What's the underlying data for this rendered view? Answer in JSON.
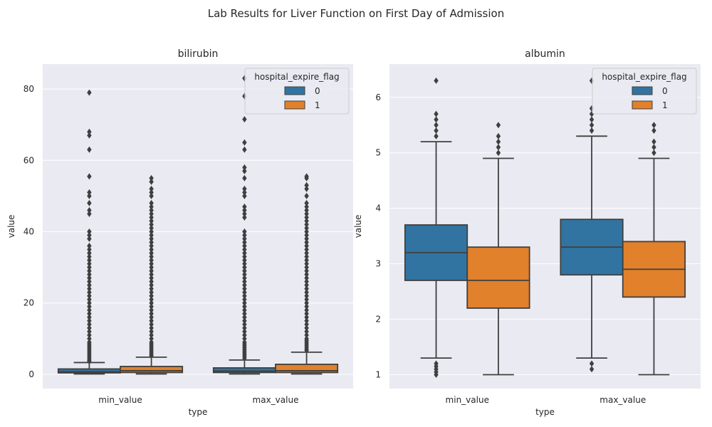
{
  "figure": {
    "suptitle": "Lab Results for Liver Function on First Day of Admission"
  },
  "chart_data": [
    {
      "type": "box",
      "title": "bilirubin",
      "xlabel": "type",
      "ylabel": "value",
      "categories": [
        "min_value",
        "max_value"
      ],
      "ylim": [
        -4,
        87
      ],
      "yticks": [
        0,
        20,
        40,
        60,
        80
      ],
      "legend": {
        "title": "hospital_expire_flag",
        "position": "top-right",
        "entries": [
          "0",
          "1"
        ]
      },
      "series": [
        {
          "name": "0",
          "color": "#3274a1",
          "boxes": [
            {
              "whisker_low": 0.1,
              "q1": 0.4,
              "median": 0.7,
              "q3": 1.5,
              "whisker_high": 3.3,
              "outliers": [
                79,
                68,
                67,
                63,
                55.5,
                51,
                50,
                48,
                46,
                45,
                40,
                39,
                38,
                36,
                35,
                34,
                33,
                32,
                31,
                30,
                29,
                28,
                27,
                26,
                25,
                24,
                23,
                22,
                21,
                20,
                19,
                18,
                17,
                16,
                15,
                14,
                13,
                12,
                11,
                10,
                9,
                8.5,
                8,
                7.5,
                7,
                6.5,
                6,
                5.5,
                5,
                4.5,
                4,
                3.6
              ]
            },
            {
              "whisker_low": 0.1,
              "q1": 0.5,
              "median": 0.9,
              "q3": 1.8,
              "whisker_high": 4.0,
              "outliers": [
                83,
                78,
                71.5,
                65,
                63,
                58,
                57,
                55,
                52,
                51,
                50,
                47,
                46,
                45,
                44,
                40,
                39,
                38,
                37,
                36,
                35,
                34,
                33,
                32,
                31,
                30,
                29,
                28,
                27,
                26,
                25,
                24,
                23,
                22,
                21,
                20,
                19,
                18,
                17,
                16,
                15,
                14,
                13,
                12,
                11,
                10,
                9,
                8.5,
                8,
                7.5,
                7,
                6.5,
                6,
                5.5,
                5,
                4.5
              ]
            }
          ]
        },
        {
          "name": "1",
          "color": "#e1812c",
          "boxes": [
            {
              "whisker_low": 0.1,
              "q1": 0.5,
              "median": 1.0,
              "q3": 2.2,
              "whisker_high": 4.8,
              "outliers": [
                55,
                54,
                52,
                51,
                50,
                48,
                47,
                46,
                45,
                44,
                43,
                42,
                41,
                40,
                39,
                38,
                37,
                36,
                35,
                34,
                33,
                32,
                31,
                30,
                29,
                28,
                27,
                26,
                25,
                24,
                23,
                22,
                21,
                20,
                19,
                18,
                17,
                16,
                15,
                14,
                13,
                12,
                11,
                10,
                9,
                8.5,
                8,
                7.5,
                7,
                6.5,
                6,
                5.5,
                5.2
              ]
            },
            {
              "whisker_low": 0.1,
              "q1": 0.5,
              "median": 1.0,
              "q3": 2.8,
              "whisker_high": 6.2,
              "outliers": [
                55.5,
                55,
                53,
                52,
                50,
                48,
                47,
                46,
                45,
                44,
                43,
                42,
                41,
                40,
                39,
                38,
                37,
                36,
                35,
                34,
                33,
                32,
                31,
                30,
                29,
                28,
                27,
                26,
                25,
                24,
                23,
                22,
                21,
                20,
                19,
                18,
                17,
                16,
                15,
                14,
                13,
                12,
                11,
                10,
                9.5,
                9,
                8.5,
                8,
                7.5,
                7,
                6.7
              ]
            }
          ]
        }
      ]
    },
    {
      "type": "box",
      "title": "albumin",
      "xlabel": "type",
      "ylabel": "value",
      "categories": [
        "min_value",
        "max_value"
      ],
      "ylim": [
        0.75,
        6.6
      ],
      "yticks": [
        1,
        2,
        3,
        4,
        5,
        6
      ],
      "legend": {
        "title": "hospital_expire_flag",
        "position": "top-right",
        "entries": [
          "0",
          "1"
        ]
      },
      "series": [
        {
          "name": "0",
          "color": "#3274a1",
          "boxes": [
            {
              "whisker_low": 1.3,
              "q1": 2.7,
              "median": 3.2,
              "q3": 3.7,
              "whisker_high": 5.2,
              "outliers": [
                6.3,
                5.7,
                5.6,
                5.5,
                5.4,
                5.3,
                1.2,
                1.15,
                1.1,
                1.05,
                1.0
              ]
            },
            {
              "whisker_low": 1.3,
              "q1": 2.8,
              "median": 3.3,
              "q3": 3.8,
              "whisker_high": 5.3,
              "outliers": [
                6.3,
                5.8,
                5.7,
                5.6,
                5.5,
                5.4,
                1.2,
                1.1
              ]
            }
          ]
        },
        {
          "name": "1",
          "color": "#e1812c",
          "boxes": [
            {
              "whisker_low": 1.0,
              "q1": 2.2,
              "median": 2.7,
              "q3": 3.3,
              "whisker_high": 4.9,
              "outliers": [
                5.5,
                5.3,
                5.2,
                5.1,
                5.0
              ]
            },
            {
              "whisker_low": 1.0,
              "q1": 2.4,
              "median": 2.9,
              "q3": 3.4,
              "whisker_high": 4.9,
              "outliers": [
                5.5,
                5.4,
                5.2,
                5.1,
                5.0
              ]
            }
          ]
        }
      ]
    }
  ]
}
